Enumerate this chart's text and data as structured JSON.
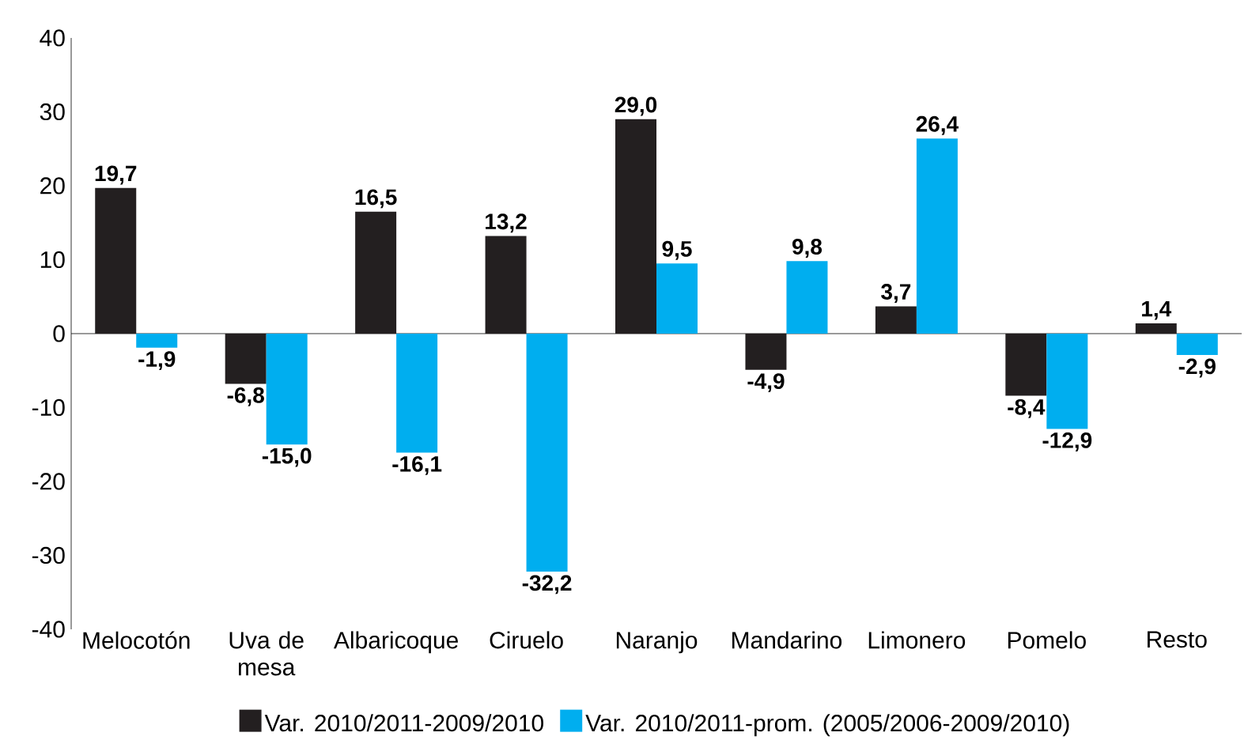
{
  "chart_data": {
    "type": "bar",
    "categories": [
      "Melocotón",
      "Uva de mesa",
      "Albaricoque",
      "Ciruelo",
      "Naranjo",
      "Mandarino",
      "Limonero",
      "Pomelo",
      "Resto"
    ],
    "series": [
      {
        "name": "Var. 2010/2011-2009/2010",
        "color": "#231f20",
        "values": [
          19.7,
          -6.8,
          16.5,
          13.2,
          29.0,
          -4.9,
          3.7,
          -8.4,
          1.4
        ],
        "value_labels": [
          "19,7",
          "-6,8",
          "16,5",
          "13,2",
          "29,0",
          "-4,9",
          "3,7",
          "-8,4",
          "1,4"
        ]
      },
      {
        "name": "Var. 2010/2011-prom. (2005/2006-2009/2010)",
        "color": "#00aeef",
        "values": [
          -1.9,
          -15.0,
          -16.1,
          -32.2,
          9.5,
          9.8,
          26.4,
          -12.9,
          -2.9
        ],
        "value_labels": [
          "-1,9",
          "-15,0",
          "-16,1",
          "-32,2",
          "9,5",
          "9,8",
          "26,4",
          "-12,9",
          "-2,9"
        ]
      }
    ],
    "ylim": [
      -40,
      40
    ],
    "yticks": [
      -40,
      -30,
      -20,
      -10,
      0,
      10,
      20,
      30,
      40
    ],
    "legend": "bottom"
  }
}
